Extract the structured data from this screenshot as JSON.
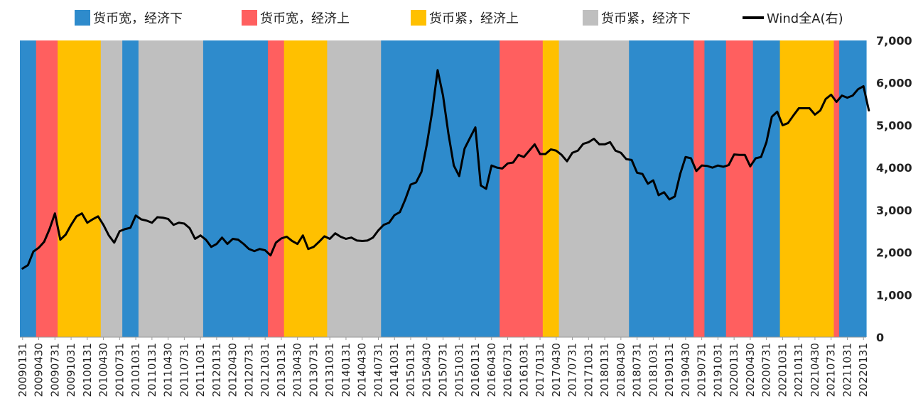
{
  "chart_data": {
    "type": "line",
    "title": "",
    "legend": {
      "placement": "top",
      "entries": [
        {
          "label": "货币宽，经济下",
          "color": "#2E8BCC",
          "kind": "area"
        },
        {
          "label": "货币宽，经济上",
          "color": "#FF5F5F",
          "kind": "area"
        },
        {
          "label": "货币紧，经济上",
          "color": "#FFC000",
          "kind": "area"
        },
        {
          "label": "货币紧，经济下",
          "color": "#BFBFBF",
          "kind": "area"
        },
        {
          "label": "Wind全A(右)",
          "color": "#000000",
          "kind": "line"
        }
      ]
    },
    "regime_colors": {
      "A": "#2E8BCC",
      "B": "#FF5F5F",
      "C": "#FFC000",
      "D": "#BFBFBF"
    },
    "regimes": [
      {
        "start": "2009-01",
        "end": "2009-03",
        "regime": "A"
      },
      {
        "start": "2009-04",
        "end": "2009-07",
        "regime": "B"
      },
      {
        "start": "2009-08",
        "end": "2010-03",
        "regime": "C"
      },
      {
        "start": "2010-04",
        "end": "2010-07",
        "regime": "D"
      },
      {
        "start": "2010-08",
        "end": "2010-10",
        "regime": "A"
      },
      {
        "start": "2010-11",
        "end": "2011-10",
        "regime": "D"
      },
      {
        "start": "2011-11",
        "end": "2012-10",
        "regime": "A"
      },
      {
        "start": "2012-11",
        "end": "2013-01",
        "regime": "B"
      },
      {
        "start": "2013-02",
        "end": "2013-09",
        "regime": "C"
      },
      {
        "start": "2013-10",
        "end": "2014-07",
        "regime": "D"
      },
      {
        "start": "2014-08",
        "end": "2016-05",
        "regime": "A"
      },
      {
        "start": "2016-06",
        "end": "2017-01",
        "regime": "B"
      },
      {
        "start": "2017-02",
        "end": "2017-04",
        "regime": "C"
      },
      {
        "start": "2017-05",
        "end": "2018-05",
        "regime": "D"
      },
      {
        "start": "2018-06",
        "end": "2019-05",
        "regime": "A"
      },
      {
        "start": "2019-06",
        "end": "2019-07",
        "regime": "B"
      },
      {
        "start": "2019-08",
        "end": "2019-11",
        "regime": "A"
      },
      {
        "start": "2019-12",
        "end": "2020-04",
        "regime": "B"
      },
      {
        "start": "2020-05",
        "end": "2020-09",
        "regime": "A"
      },
      {
        "start": "2020-10",
        "end": "2021-07",
        "regime": "C"
      },
      {
        "start": "2021-08",
        "end": "2021-08",
        "regime": "B"
      },
      {
        "start": "2021-09",
        "end": "2022-01",
        "regime": "A"
      }
    ],
    "x_range": [
      "2009-01",
      "2022-01"
    ],
    "x_tick_labels": [
      "20090131",
      "20090430",
      "20090731",
      "20091031",
      "20100131",
      "20100430",
      "20100731",
      "20101031",
      "20110131",
      "20110430",
      "20110731",
      "20111031",
      "20120131",
      "20120430",
      "20120731",
      "20121031",
      "20130131",
      "20130430",
      "20130731",
      "20131031",
      "20140131",
      "20140430",
      "20140731",
      "20141031",
      "20150131",
      "20150430",
      "20150731",
      "20151031",
      "20160131",
      "20160430",
      "20160731",
      "20161031",
      "20170131",
      "20170430",
      "20170731",
      "20171031",
      "20180131",
      "20180430",
      "20180731",
      "20181031",
      "20190131",
      "20190430",
      "20190731",
      "20191031",
      "20200131",
      "20200430",
      "20200731",
      "20201031",
      "20210131",
      "20210430",
      "20210731",
      "20211031",
      "20220131"
    ],
    "y_right": {
      "min": 0,
      "max": 7000,
      "ticks": [
        "0",
        "1,000",
        "2,000",
        "3,000",
        "4,000",
        "5,000",
        "6,000",
        "7,000"
      ]
    },
    "series": [
      {
        "name": "Wind全A(右)",
        "color": "#000000",
        "start": "2009-01",
        "values": [
          1620,
          1700,
          2020,
          2110,
          2250,
          2550,
          2920,
          2300,
          2420,
          2650,
          2850,
          2920,
          2700,
          2780,
          2850,
          2650,
          2400,
          2230,
          2500,
          2550,
          2580,
          2870,
          2780,
          2750,
          2700,
          2830,
          2820,
          2790,
          2650,
          2700,
          2680,
          2570,
          2320,
          2400,
          2300,
          2130,
          2200,
          2350,
          2200,
          2320,
          2300,
          2200,
          2080,
          2030,
          2080,
          2050,
          1930,
          2230,
          2330,
          2370,
          2270,
          2200,
          2400,
          2080,
          2130,
          2250,
          2380,
          2320,
          2450,
          2370,
          2320,
          2350,
          2280,
          2270,
          2280,
          2350,
          2520,
          2650,
          2700,
          2880,
          2950,
          3250,
          3600,
          3650,
          3900,
          4550,
          5330,
          6300,
          5700,
          4800,
          4050,
          3800,
          4450,
          4700,
          4950,
          3580,
          3500,
          4050,
          4000,
          3980,
          4100,
          4120,
          4300,
          4250,
          4400,
          4550,
          4320,
          4320,
          4430,
          4400,
          4300,
          4150,
          4350,
          4400,
          4560,
          4600,
          4680,
          4550,
          4550,
          4600,
          4400,
          4350,
          4200,
          4180,
          3880,
          3850,
          3620,
          3700,
          3350,
          3420,
          3250,
          3320,
          3850,
          4250,
          4220,
          3920,
          4050,
          4040,
          4000,
          4050,
          4020,
          4060,
          4310,
          4300,
          4300,
          4030,
          4220,
          4250,
          4600,
          5200,
          5320,
          5000,
          5050,
          5230,
          5400,
          5400,
          5400,
          5250,
          5350,
          5620,
          5720,
          5550,
          5700,
          5650,
          5700,
          5850,
          5920,
          5350
        ]
      }
    ]
  }
}
